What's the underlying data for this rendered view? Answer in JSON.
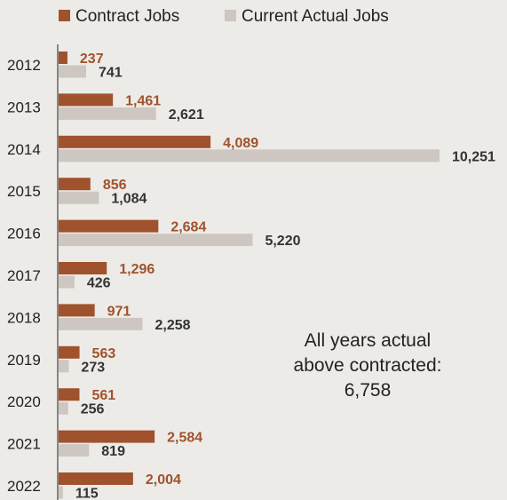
{
  "colors": {
    "background": "#edebe7",
    "contract": "#a0522d",
    "actual": "#cdc6c1",
    "contract_label": "#a0522d",
    "actual_label": "#333333",
    "axis": "#666666"
  },
  "chart_data": {
    "type": "bar",
    "orientation": "horizontal",
    "categories": [
      "2012",
      "2013",
      "2014",
      "2015",
      "2016",
      "2017",
      "2018",
      "2019",
      "2020",
      "2021",
      "2022"
    ],
    "series": [
      {
        "name": "Contract Jobs",
        "values": [
          237,
          1461,
          4089,
          856,
          2684,
          1296,
          971,
          563,
          561,
          2584,
          2004
        ],
        "labels": [
          "237",
          "1,461",
          "4,089",
          "856",
          "2,684",
          "1,296",
          "971",
          "563",
          "561",
          "2,584",
          "2,004"
        ]
      },
      {
        "name": "Current Actual Jobs",
        "values": [
          741,
          2621,
          10251,
          1084,
          5220,
          426,
          2258,
          273,
          256,
          819,
          115
        ],
        "labels": [
          "741",
          "2,621",
          "10,251",
          "1,084",
          "5,220",
          "426",
          "2,258",
          "273",
          "256",
          "819",
          "115"
        ]
      }
    ],
    "xlim": [
      0,
      10251
    ],
    "grid": false,
    "legend_position": "top",
    "annotation": {
      "lines": [
        "All years actual",
        "above contracted:",
        "6,758"
      ]
    }
  }
}
